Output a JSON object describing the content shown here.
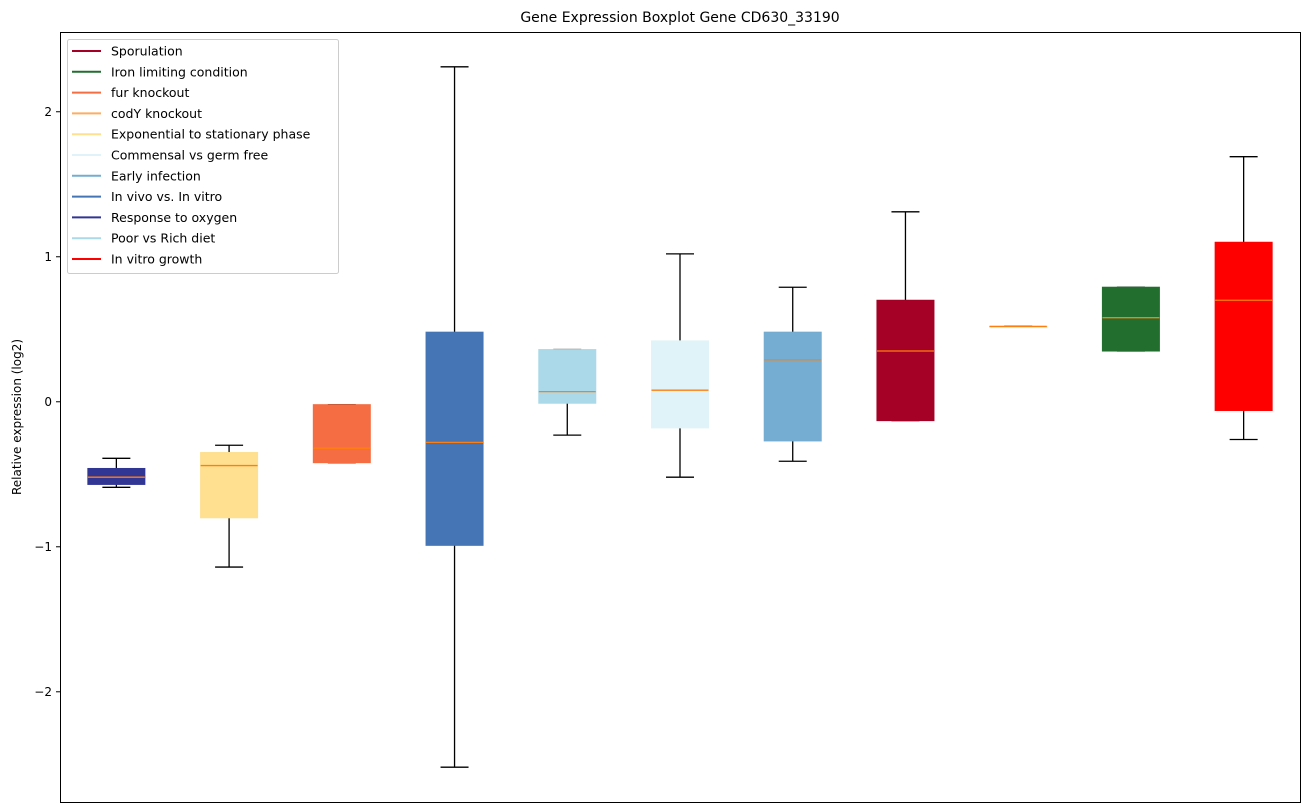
{
  "chart_data": {
    "type": "boxplot",
    "title": "Gene Expression Boxplot Gene CD630_33190",
    "xlabel": "",
    "ylabel": "Relative expression (log2)",
    "ylim": [
      -2.76,
      2.55
    ],
    "yticks": [
      -2,
      -1,
      0,
      1,
      2
    ],
    "ytick_labels": [
      "−2",
      "−1",
      "0",
      "1",
      "2"
    ],
    "grid": false,
    "legend_position": "top-left",
    "legend": [
      {
        "label": "Sporulation",
        "color": "#a50026"
      },
      {
        "label": "Iron limiting condition",
        "color": "#226e2e"
      },
      {
        "label": "fur knockout",
        "color": "#f46d43"
      },
      {
        "label": "codY knockout",
        "color": "#fdae61"
      },
      {
        "label": "Exponential to stationary phase",
        "color": "#fee090"
      },
      {
        "label": "Commensal vs germ free",
        "color": "#e0f3f8"
      },
      {
        "label": "Early infection",
        "color": "#74add1"
      },
      {
        "label": "In vivo vs. In vitro",
        "color": "#4575b4"
      },
      {
        "label": "Response to oxygen",
        "color": "#313695"
      },
      {
        "label": "Poor vs Rich diet",
        "color": "#abd9e9"
      },
      {
        "label": "In vitro growth",
        "color": "#ff0000"
      }
    ],
    "median_color": "#ff7f0e",
    "series": [
      {
        "name": "Response to oxygen",
        "color": "#313695",
        "whisker_low": -0.59,
        "q1": -0.57,
        "median": -0.52,
        "q3": -0.46,
        "whisker_high": -0.39
      },
      {
        "name": "Exponential to stationary phase",
        "color": "#fee090",
        "whisker_low": -1.14,
        "q1": -0.8,
        "median": -0.44,
        "q3": -0.35,
        "whisker_high": -0.3
      },
      {
        "name": "fur knockout",
        "color": "#f46d43",
        "whisker_low": -0.42,
        "q1": -0.42,
        "median": -0.32,
        "q3": -0.02,
        "whisker_high": -0.02
      },
      {
        "name": "In vivo vs. In vitro",
        "color": "#4575b4",
        "whisker_low": -2.52,
        "q1": -0.99,
        "median": -0.28,
        "q3": 0.48,
        "whisker_high": 2.31
      },
      {
        "name": "Poor vs Rich diet",
        "color": "#abd9e9",
        "whisker_low": -0.23,
        "q1": -0.01,
        "median": 0.07,
        "q3": 0.36,
        "whisker_high": 0.36
      },
      {
        "name": "Commensal vs germ free",
        "color": "#e0f3f8",
        "whisker_low": -0.52,
        "q1": -0.18,
        "median": 0.08,
        "q3": 0.42,
        "whisker_high": 1.02
      },
      {
        "name": "Early infection",
        "color": "#74add1",
        "whisker_low": -0.41,
        "q1": -0.27,
        "median": 0.29,
        "q3": 0.48,
        "whisker_high": 0.79
      },
      {
        "name": "Sporulation",
        "color": "#a50026",
        "whisker_low": -0.13,
        "q1": -0.13,
        "median": 0.35,
        "q3": 0.7,
        "whisker_high": 1.31
      },
      {
        "name": "codY knockout",
        "color": "#fdae61",
        "whisker_low": 0.52,
        "q1": 0.52,
        "median": 0.52,
        "q3": 0.52,
        "whisker_high": 0.52
      },
      {
        "name": "Iron limiting condition",
        "color": "#226e2e",
        "whisker_low": 0.35,
        "q1": 0.35,
        "median": 0.58,
        "q3": 0.79,
        "whisker_high": 0.79
      },
      {
        "name": "In vitro growth",
        "color": "#ff0000",
        "whisker_low": -0.26,
        "q1": -0.06,
        "median": 0.7,
        "q3": 1.1,
        "whisker_high": 1.69
      }
    ]
  }
}
